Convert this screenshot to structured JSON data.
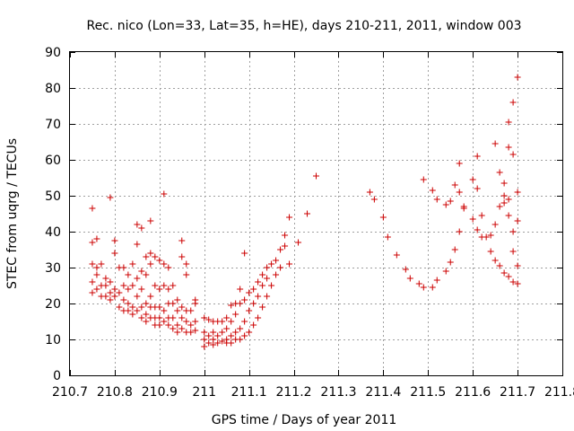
{
  "chart_data": {
    "type": "scatter",
    "title": "Rec. nico (Lon=33, Lat=35, h=HE), days 210-211, 2011, window 003",
    "xlabel": "GPS time / Days of year 2011",
    "ylabel": "STEC from uqrg / TECUs",
    "xlim": [
      210.7,
      211.8
    ],
    "ylim": [
      0,
      90
    ],
    "x_ticks": [
      210.7,
      210.8,
      210.9,
      211,
      211.1,
      211.2,
      211.3,
      211.4,
      211.5,
      211.6,
      211.7,
      211.8
    ],
    "x_tick_labels": [
      "210.7",
      "210.8",
      "210.9",
      "211",
      "211.1",
      "211.2",
      "211.3",
      "211.4",
      "211.5",
      "211.6",
      "211.7",
      "211.8"
    ],
    "y_ticks": [
      0,
      10,
      20,
      30,
      40,
      50,
      60,
      70,
      80,
      90
    ],
    "y_tick_labels": [
      "0",
      "10",
      "20",
      "30",
      "40",
      "50",
      "60",
      "70",
      "80",
      "90"
    ],
    "grid": true,
    "marker": "+",
    "color": "#cc0000",
    "series": [
      {
        "name": "STEC",
        "points": [
          [
            210.75,
            46.5
          ],
          [
            210.75,
            37
          ],
          [
            210.75,
            31
          ],
          [
            210.75,
            26
          ],
          [
            210.75,
            23
          ],
          [
            210.76,
            38
          ],
          [
            210.76,
            30
          ],
          [
            210.76,
            28
          ],
          [
            210.76,
            24
          ],
          [
            210.77,
            31
          ],
          [
            210.77,
            25
          ],
          [
            210.77,
            22
          ],
          [
            210.78,
            27
          ],
          [
            210.78,
            25
          ],
          [
            210.78,
            22
          ],
          [
            210.79,
            49.5
          ],
          [
            210.79,
            26
          ],
          [
            210.79,
            23
          ],
          [
            210.79,
            21
          ],
          [
            210.8,
            37.5
          ],
          [
            210.8,
            34
          ],
          [
            210.8,
            24
          ],
          [
            210.8,
            22
          ],
          [
            210.81,
            30
          ],
          [
            210.81,
            23
          ],
          [
            210.81,
            19
          ],
          [
            210.82,
            30
          ],
          [
            210.82,
            25
          ],
          [
            210.82,
            21
          ],
          [
            210.82,
            18
          ],
          [
            210.83,
            28
          ],
          [
            210.83,
            24
          ],
          [
            210.83,
            20
          ],
          [
            210.83,
            18
          ],
          [
            210.84,
            31
          ],
          [
            210.84,
            25
          ],
          [
            210.84,
            19
          ],
          [
            210.84,
            17
          ],
          [
            210.85,
            42
          ],
          [
            210.85,
            36.5
          ],
          [
            210.85,
            27
          ],
          [
            210.85,
            22
          ],
          [
            210.85,
            18
          ],
          [
            210.86,
            41
          ],
          [
            210.86,
            29
          ],
          [
            210.86,
            24
          ],
          [
            210.86,
            19
          ],
          [
            210.86,
            16
          ],
          [
            210.87,
            33
          ],
          [
            210.87,
            28
          ],
          [
            210.87,
            20
          ],
          [
            210.87,
            17
          ],
          [
            210.87,
            15
          ],
          [
            210.88,
            43
          ],
          [
            210.88,
            34
          ],
          [
            210.88,
            31
          ],
          [
            210.88,
            22
          ],
          [
            210.88,
            19
          ],
          [
            210.88,
            16
          ],
          [
            210.89,
            33
          ],
          [
            210.89,
            25
          ],
          [
            210.89,
            19
          ],
          [
            210.89,
            16
          ],
          [
            210.89,
            14
          ],
          [
            210.9,
            32
          ],
          [
            210.9,
            24
          ],
          [
            210.9,
            19
          ],
          [
            210.9,
            16
          ],
          [
            210.9,
            14
          ],
          [
            210.91,
            50.5
          ],
          [
            210.91,
            31
          ],
          [
            210.91,
            25
          ],
          [
            210.91,
            18
          ],
          [
            210.91,
            15
          ],
          [
            210.92,
            30
          ],
          [
            210.92,
            24
          ],
          [
            210.92,
            20
          ],
          [
            210.92,
            16
          ],
          [
            210.92,
            14
          ],
          [
            210.93,
            25
          ],
          [
            210.93,
            20
          ],
          [
            210.93,
            16
          ],
          [
            210.93,
            13
          ],
          [
            210.94,
            21
          ],
          [
            210.94,
            18
          ],
          [
            210.94,
            14
          ],
          [
            210.94,
            12
          ],
          [
            210.95,
            37.5
          ],
          [
            210.95,
            33
          ],
          [
            210.95,
            19
          ],
          [
            210.95,
            16
          ],
          [
            210.95,
            13
          ],
          [
            210.96,
            31
          ],
          [
            210.96,
            28
          ],
          [
            210.96,
            18
          ],
          [
            210.96,
            15
          ],
          [
            210.96,
            12
          ],
          [
            210.97,
            18
          ],
          [
            210.97,
            14
          ],
          [
            210.97,
            12
          ],
          [
            210.98,
            21
          ],
          [
            210.98,
            20
          ],
          [
            210.98,
            15
          ],
          [
            210.98,
            12.5
          ],
          [
            211.0,
            16
          ],
          [
            211.0,
            12
          ],
          [
            211.0,
            10
          ],
          [
            211.0,
            8
          ],
          [
            211.01,
            15.5
          ],
          [
            211.01,
            11
          ],
          [
            211.01,
            9
          ],
          [
            211.02,
            15
          ],
          [
            211.02,
            12
          ],
          [
            211.02,
            10
          ],
          [
            211.02,
            8.5
          ],
          [
            211.03,
            15
          ],
          [
            211.03,
            11
          ],
          [
            211.03,
            9
          ],
          [
            211.04,
            15
          ],
          [
            211.04,
            12
          ],
          [
            211.04,
            9.5
          ],
          [
            211.05,
            16
          ],
          [
            211.05,
            13
          ],
          [
            211.05,
            10
          ],
          [
            211.05,
            9
          ],
          [
            211.06,
            19.5
          ],
          [
            211.06,
            15
          ],
          [
            211.06,
            11
          ],
          [
            211.06,
            9
          ],
          [
            211.07,
            20
          ],
          [
            211.07,
            17
          ],
          [
            211.07,
            12
          ],
          [
            211.07,
            10
          ],
          [
            211.08,
            24
          ],
          [
            211.08,
            20
          ],
          [
            211.08,
            13
          ],
          [
            211.08,
            10
          ],
          [
            211.09,
            34
          ],
          [
            211.09,
            21
          ],
          [
            211.09,
            15
          ],
          [
            211.09,
            11
          ],
          [
            211.1,
            23
          ],
          [
            211.1,
            18
          ],
          [
            211.1,
            12
          ],
          [
            211.11,
            24
          ],
          [
            211.11,
            20
          ],
          [
            211.11,
            14
          ],
          [
            211.12,
            26
          ],
          [
            211.12,
            22
          ],
          [
            211.12,
            16
          ],
          [
            211.13,
            28
          ],
          [
            211.13,
            25
          ],
          [
            211.13,
            19
          ],
          [
            211.14,
            30
          ],
          [
            211.14,
            27
          ],
          [
            211.14,
            22
          ],
          [
            211.15,
            31
          ],
          [
            211.15,
            25
          ],
          [
            211.16,
            32
          ],
          [
            211.16,
            28
          ],
          [
            211.17,
            35
          ],
          [
            211.17,
            30
          ],
          [
            211.18,
            39
          ],
          [
            211.18,
            36
          ],
          [
            211.19,
            44
          ],
          [
            211.19,
            31
          ],
          [
            211.21,
            37
          ],
          [
            211.23,
            45
          ],
          [
            211.25,
            55.5
          ],
          [
            211.37,
            51
          ],
          [
            211.38,
            49
          ],
          [
            211.4,
            44
          ],
          [
            211.41,
            38.5
          ],
          [
            211.43,
            33.5
          ],
          [
            211.45,
            29.5
          ],
          [
            211.46,
            27
          ],
          [
            211.48,
            25.5
          ],
          [
            211.49,
            24.5
          ],
          [
            211.49,
            54.5
          ],
          [
            211.51,
            24.5
          ],
          [
            211.51,
            51.5
          ],
          [
            211.52,
            26.5
          ],
          [
            211.52,
            49
          ],
          [
            211.54,
            29
          ],
          [
            211.54,
            47.5
          ],
          [
            211.55,
            31.5
          ],
          [
            211.55,
            48.5
          ],
          [
            211.56,
            35
          ],
          [
            211.56,
            53
          ],
          [
            211.57,
            40
          ],
          [
            211.57,
            51
          ],
          [
            211.57,
            59
          ],
          [
            211.58,
            47
          ],
          [
            211.58,
            46.5
          ],
          [
            211.6,
            43.5
          ],
          [
            211.6,
            54.5
          ],
          [
            211.61,
            52
          ],
          [
            211.61,
            61
          ],
          [
            211.61,
            40.5
          ],
          [
            211.62,
            38.5
          ],
          [
            211.62,
            44.5
          ],
          [
            211.63,
            38.5
          ],
          [
            211.64,
            34.5
          ],
          [
            211.64,
            39
          ],
          [
            211.65,
            32
          ],
          [
            211.65,
            42
          ],
          [
            211.65,
            64.5
          ],
          [
            211.66,
            30.5
          ],
          [
            211.66,
            47
          ],
          [
            211.66,
            56.5
          ],
          [
            211.67,
            28.5
          ],
          [
            211.67,
            48
          ],
          [
            211.67,
            50
          ],
          [
            211.67,
            53.5
          ],
          [
            211.68,
            27.5
          ],
          [
            211.68,
            44.5
          ],
          [
            211.68,
            49
          ],
          [
            211.68,
            63.5
          ],
          [
            211.68,
            70.5
          ],
          [
            211.69,
            26
          ],
          [
            211.69,
            34.5
          ],
          [
            211.69,
            40
          ],
          [
            211.69,
            61.5
          ],
          [
            211.69,
            76
          ],
          [
            211.7,
            25.5
          ],
          [
            211.7,
            30.5
          ],
          [
            211.7,
            43
          ],
          [
            211.7,
            51
          ],
          [
            211.7,
            83
          ]
        ]
      }
    ]
  }
}
